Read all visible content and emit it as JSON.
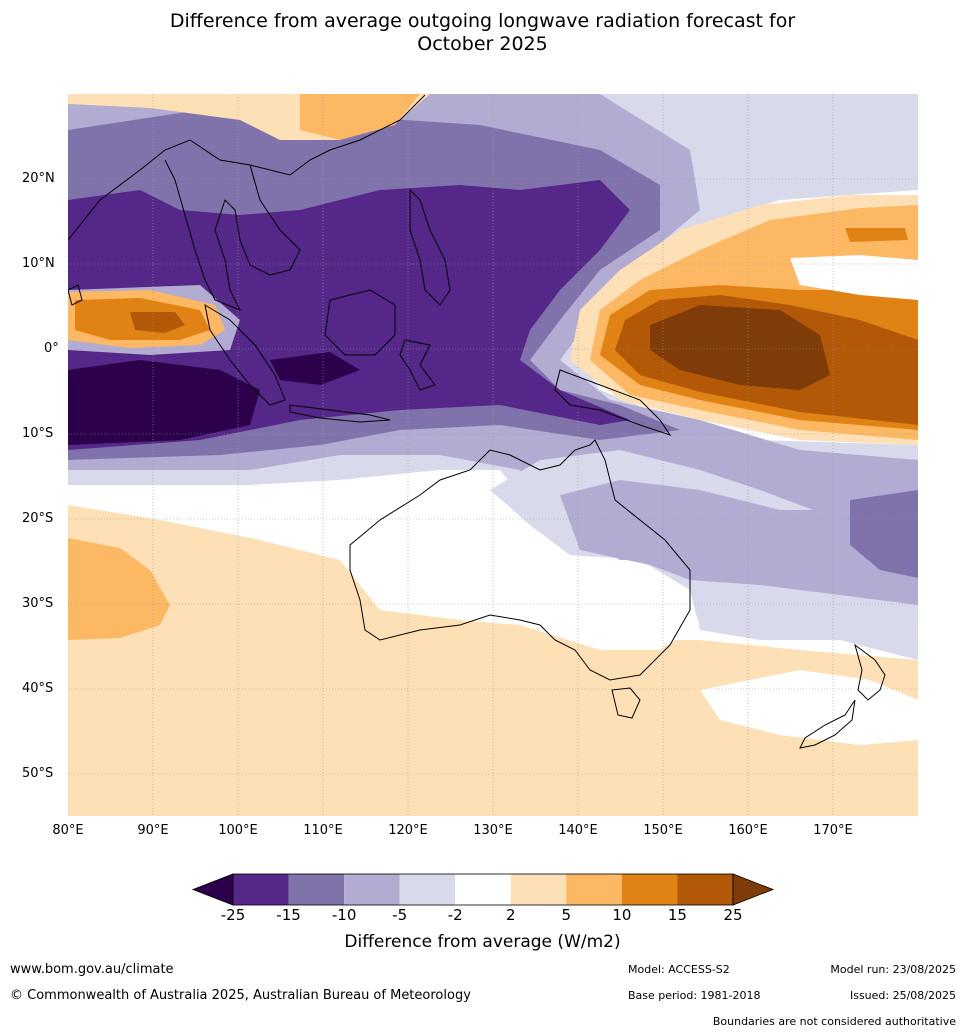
{
  "title": {
    "line1": "Difference from average outgoing longwave radiation forecast for",
    "line2": "October 2025"
  },
  "map": {
    "lat_labels": [
      "20°N",
      "10°N",
      "0°",
      "10°S",
      "20°S",
      "30°S",
      "40°S",
      "50°S"
    ],
    "lon_labels": [
      "80°E",
      "90°E",
      "100°E",
      "110°E",
      "120°E",
      "130°E",
      "140°E",
      "150°E",
      "160°E",
      "170°E"
    ],
    "extent": {
      "lon": [
        80,
        180
      ],
      "lat": [
        -55,
        30
      ]
    }
  },
  "colorbar": {
    "ticks": [
      "-25",
      "-15",
      "-10",
      "-5",
      "-2",
      "2",
      "5",
      "10",
      "15",
      "25"
    ],
    "colors": [
      "#2d004b",
      "#542788",
      "#8073ac",
      "#b2abd2",
      "#d8daeb",
      "#ffffff",
      "#fee0b6",
      "#fdb863",
      "#e08214",
      "#b35806",
      "#7f3b08"
    ],
    "label": "Difference from average (W/m2)"
  },
  "footer": {
    "website": "www.bom.gov.au/climate",
    "copyright": "© Commonwealth of Australia 2025, Australian Bureau of Meteorology",
    "model": "Model: ACCESS-S2",
    "base_period": "Base period: 1981-2018",
    "model_run": "Model run: 23/08/2025",
    "issued": "Issued: 25/08/2025",
    "disclaimer": "Boundaries are not considered authoritative"
  }
}
